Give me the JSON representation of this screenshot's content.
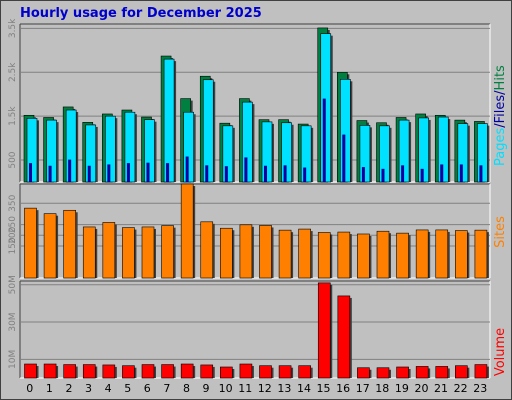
{
  "title": "Hourly usage for December 2025",
  "colors": {
    "background": "#c0c0c0",
    "hits": "#008040",
    "files": "#00e0ff",
    "pages": "#0000a0",
    "sites": "#ff8000",
    "volume": "#ff0000",
    "title": "#0000cc"
  },
  "chart_data": [
    {
      "type": "bar",
      "panel": "hits-files-pages",
      "categories": [
        "0",
        "1",
        "2",
        "3",
        "4",
        "5",
        "6",
        "7",
        "8",
        "9",
        "10",
        "11",
        "12",
        "13",
        "14",
        "15",
        "16",
        "17",
        "18",
        "19",
        "20",
        "21",
        "22",
        "23"
      ],
      "ylim": [
        0,
        3600
      ],
      "ytick_values": [
        500,
        1500,
        2500,
        3500
      ],
      "ytick_labels": [
        "500",
        "1.5k",
        "2.5k",
        "3.5k"
      ],
      "side_label": {
        "pages": "Pages",
        "sep1": "/",
        "files": "Files",
        "sep2": "/",
        "hits": "Hits"
      },
      "series": [
        {
          "name": "Hits",
          "values": [
            1520,
            1470,
            1710,
            1360,
            1550,
            1640,
            1480,
            2870,
            1900,
            2410,
            1340,
            1900,
            1420,
            1420,
            1320,
            3510,
            2500,
            1400,
            1350,
            1470,
            1550,
            1520,
            1410,
            1380
          ]
        },
        {
          "name": "Files",
          "values": [
            1450,
            1410,
            1640,
            1300,
            1500,
            1590,
            1420,
            2800,
            1590,
            2330,
            1280,
            1820,
            1370,
            1350,
            1280,
            3380,
            2340,
            1290,
            1280,
            1410,
            1460,
            1480,
            1330,
            1330
          ]
        },
        {
          "name": "Pages",
          "values": [
            430,
            370,
            510,
            370,
            400,
            430,
            440,
            430,
            580,
            380,
            360,
            560,
            370,
            380,
            330,
            1900,
            1080,
            340,
            300,
            380,
            300,
            400,
            400,
            380
          ]
        }
      ]
    },
    {
      "type": "bar",
      "panel": "sites",
      "categories": [
        "0",
        "1",
        "2",
        "3",
        "4",
        "5",
        "6",
        "7",
        "8",
        "9",
        "10",
        "11",
        "12",
        "13",
        "14",
        "15",
        "16",
        "17",
        "18",
        "19",
        "20",
        "21",
        "22",
        "23"
      ],
      "ylim": [
        0,
        440
      ],
      "ytick_values": [
        150,
        200,
        250,
        350
      ],
      "ytick_labels": [
        "150",
        "200",
        "250",
        "350"
      ],
      "side_label": "Sites",
      "series": [
        {
          "name": "Sites",
          "values": [
            327,
            301,
            317,
            239,
            260,
            236,
            239,
            245,
            440,
            263,
            233,
            249,
            246,
            224,
            229,
            213,
            215,
            206,
            219,
            210,
            225,
            225,
            222,
            224
          ]
        }
      ]
    },
    {
      "type": "bar",
      "panel": "volume",
      "categories": [
        "0",
        "1",
        "2",
        "3",
        "4",
        "5",
        "6",
        "7",
        "8",
        "9",
        "10",
        "11",
        "12",
        "13",
        "14",
        "15",
        "16",
        "17",
        "18",
        "19",
        "20",
        "21",
        "22",
        "23"
      ],
      "ylim": [
        0,
        52
      ],
      "ytick_values": [
        10,
        30,
        50
      ],
      "ytick_labels": [
        "10M",
        "30M",
        "50M"
      ],
      "side_label": "Volume",
      "series": [
        {
          "name": "Volume",
          "values": [
            7.5,
            7.5,
            7.2,
            7.2,
            7.0,
            6.6,
            7.2,
            7.2,
            7.5,
            7.0,
            5.9,
            7.5,
            6.6,
            6.6,
            6.6,
            51,
            44,
            5.5,
            5.5,
            5.9,
            6.2,
            6.2,
            6.6,
            7.2
          ]
        }
      ]
    }
  ]
}
